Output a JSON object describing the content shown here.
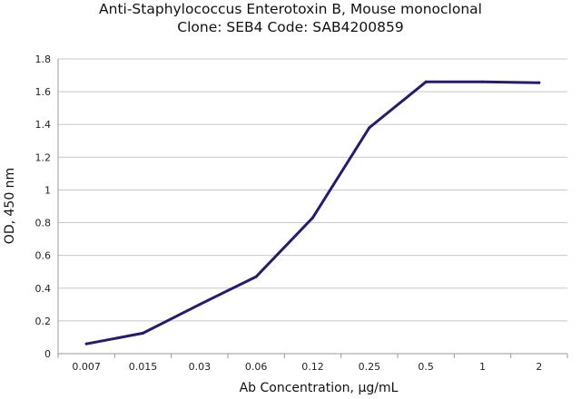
{
  "chart_data": {
    "type": "line",
    "title": "Anti-Staphylococcus Enterotoxin B, Mouse monoclonal",
    "subtitle": "Clone: SEB4  Code: SAB4200859",
    "xlabel": "Ab Concentration, µg/mL",
    "ylabel": "OD, 450 nm",
    "categories": [
      "0.007",
      "0.015",
      "0.03",
      "0.06",
      "0.12",
      "0.25",
      "0.5",
      "1",
      "2"
    ],
    "series": [
      {
        "values": [
          0.06,
          0.125,
          0.3,
          0.47,
          0.83,
          1.38,
          1.66,
          1.66,
          1.655
        ]
      }
    ],
    "ylim": [
      0,
      1.8
    ],
    "yticks": [
      "0",
      "0.2",
      "0.4",
      "0.6",
      "0.8",
      "1",
      "1.2",
      "1.4",
      "1.6",
      "1.8"
    ],
    "grid": "horizontal",
    "line_color": "#2a1a6e",
    "grid_color": "#c8c8c8"
  }
}
